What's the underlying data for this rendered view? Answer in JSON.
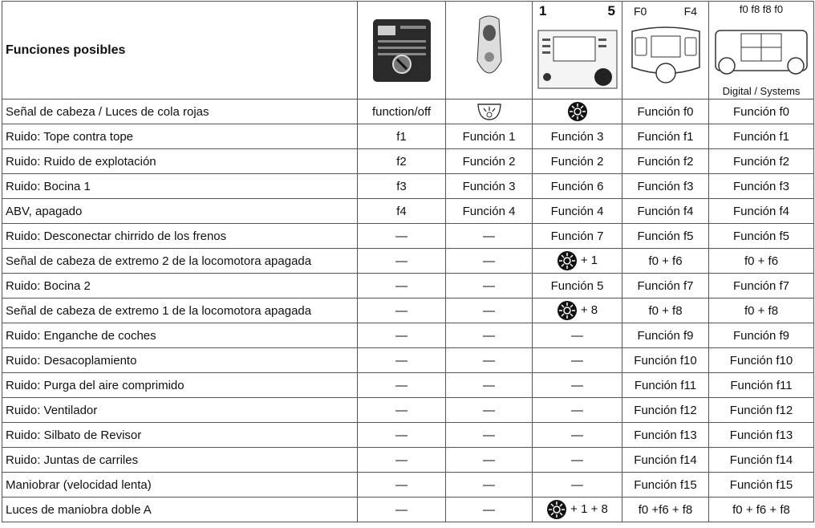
{
  "header": {
    "title": "Funciones posibles",
    "labels": [
      "1",
      "5",
      "F0",
      "F4",
      "f0 f8 f8 f0",
      "Digital / Systems"
    ]
  },
  "rows": [
    [
      "Señal de cabeza / Luces de cola rojas",
      "function/off",
      {
        "icon": "light"
      },
      {
        "icon": "light-key"
      },
      "Función f0",
      "Función f0"
    ],
    [
      "Ruido: Tope contra tope",
      "f1",
      "Función 1",
      "Función 3",
      "Función f1",
      "Función f1"
    ],
    [
      "Ruido: Ruido de explotación",
      "f2",
      "Función 2",
      "Función 2",
      "Función f2",
      "Función f2"
    ],
    [
      "Ruido: Bocina 1",
      "f3",
      "Función 3",
      "Función 6",
      "Función f3",
      "Función f3"
    ],
    [
      "ABV, apagado",
      "f4",
      "Función 4",
      "Función 4",
      "Función f4",
      "Función f4"
    ],
    [
      "Ruido: Desconectar chirrido de los frenos",
      "—",
      "—",
      "Función 7",
      "Función f5",
      "Función f5"
    ],
    [
      "Señal de cabeza de extremo 2 de la locomotora apagada",
      "—",
      "—",
      {
        "icon": "light-key",
        "text": "+ 1"
      },
      "f0 + f6",
      "f0 + f6"
    ],
    [
      "Ruido: Bocina 2",
      "—",
      "—",
      "Función 5",
      "Función f7",
      "Función f7"
    ],
    [
      "Señal de cabeza de extremo 1 de la locomotora apagada",
      "—",
      "—",
      {
        "icon": "light-key",
        "text": "+ 8"
      },
      "f0 + f8",
      "f0 + f8"
    ],
    [
      "Ruido: Enganche de coches",
      "—",
      "—",
      "—",
      "Función f9",
      "Función f9"
    ],
    [
      "Ruido: Desacoplamiento",
      "—",
      "—",
      "—",
      "Función f10",
      "Función f10"
    ],
    [
      "Ruido: Purga del aire comprimido",
      "—",
      "—",
      "—",
      "Función f11",
      "Función f11"
    ],
    [
      "Ruido: Ventilador",
      "—",
      "—",
      "—",
      "Función f12",
      "Función f12"
    ],
    [
      "Ruido: Silbato de Revisor",
      "—",
      "—",
      "—",
      "Función f13",
      "Función f13"
    ],
    [
      "Ruido: Juntas de carriles",
      "—",
      "—",
      "—",
      "Función f14",
      "Función f14"
    ],
    [
      "Maniobrar (velocidad lenta)",
      "—",
      "—",
      "—",
      "Función f15",
      "Función f15"
    ],
    [
      "Luces de maniobra doble A",
      "—",
      "—",
      {
        "icon": "light-key",
        "text": "+ 1 + 8"
      },
      "f0 +f6 + f8",
      "f0 + f6 + f8"
    ]
  ]
}
